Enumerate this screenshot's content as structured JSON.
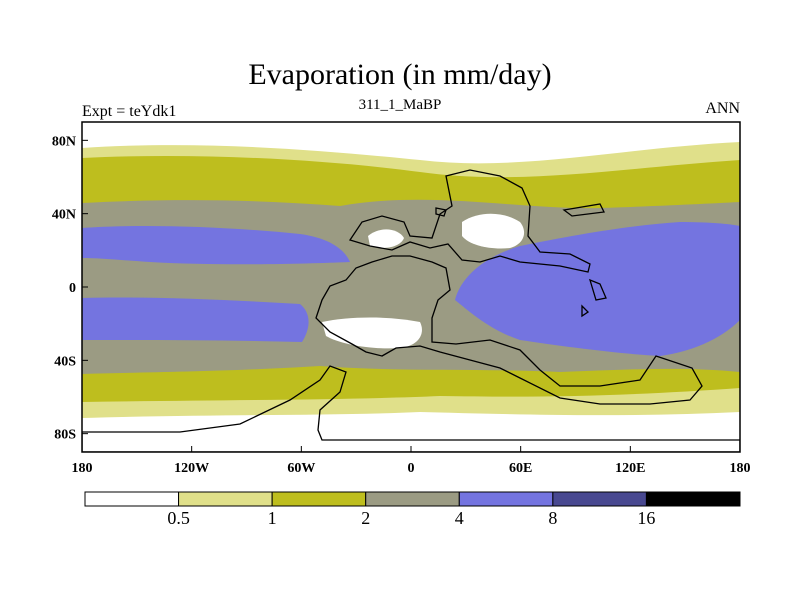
{
  "header": {
    "title": "Evaporation (in mm/day)",
    "left_label": "Expt = teYdk1",
    "center_label": "311_1_MaBP",
    "right_label": "ANN"
  },
  "axes": {
    "lat_ticks": [
      "80N",
      "40N",
      "0",
      "40S",
      "80S"
    ],
    "lon_ticks": [
      "180",
      "120W",
      "60W",
      "0",
      "60E",
      "120E",
      "180"
    ]
  },
  "colorbar": {
    "levels": [
      "0.5",
      "1",
      "2",
      "4",
      "8",
      "16"
    ],
    "colors": [
      "#ffffff",
      "#e0e08a",
      "#bebe1e",
      "#9b9b83",
      "#7474e0",
      "#484890",
      "#000000"
    ]
  },
  "chart_data": {
    "type": "heatmap",
    "title": "Evaporation (in mm/day)",
    "subtitle": "311_1_MaBP",
    "x_ticks": [
      "180",
      "120W",
      "60W",
      "0",
      "60E",
      "120E",
      "180"
    ],
    "y_ticks": [
      "80N",
      "40N",
      "0",
      "40S",
      "80S"
    ],
    "xlim": [
      -180,
      180
    ],
    "ylim": [
      -90,
      90
    ],
    "contour_levels": [
      0.5,
      1,
      2,
      4,
      8,
      16
    ]
  }
}
